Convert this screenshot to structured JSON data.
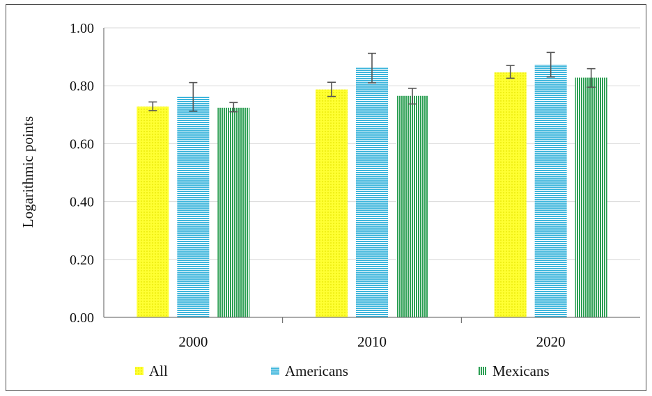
{
  "chart_data": {
    "type": "bar",
    "title": "",
    "xlabel": "",
    "ylabel": "Logarithmic points",
    "categories": [
      "2000",
      "2010",
      "2020"
    ],
    "ylim": [
      0,
      1
    ],
    "yticks": [
      "0.00",
      "0.20",
      "0.40",
      "0.60",
      "0.80",
      "1.00"
    ],
    "ytick_values": [
      0,
      0.2,
      0.4,
      0.6,
      0.8,
      1.0
    ],
    "grid": true,
    "legend_position": "bottom",
    "series": [
      {
        "name": "All",
        "color": "#ffff33",
        "pattern": "dots",
        "values": [
          0.728,
          0.787,
          0.846
        ],
        "error_low": [
          0.714,
          0.763,
          0.826
        ],
        "error_high": [
          0.744,
          0.812,
          0.87
        ]
      },
      {
        "name": "Americans",
        "color": "#3fb6dc",
        "pattern": "horizontal-stripes",
        "values": [
          0.762,
          0.862,
          0.873
        ],
        "error_low": [
          0.712,
          0.81,
          0.83
        ],
        "error_high": [
          0.811,
          0.912,
          0.915
        ]
      },
      {
        "name": "Mexicans",
        "color": "#2ea055",
        "pattern": "vertical-stripes",
        "values": [
          0.724,
          0.765,
          0.828
        ],
        "error_low": [
          0.71,
          0.737,
          0.795
        ],
        "error_high": [
          0.742,
          0.791,
          0.859
        ]
      }
    ]
  }
}
